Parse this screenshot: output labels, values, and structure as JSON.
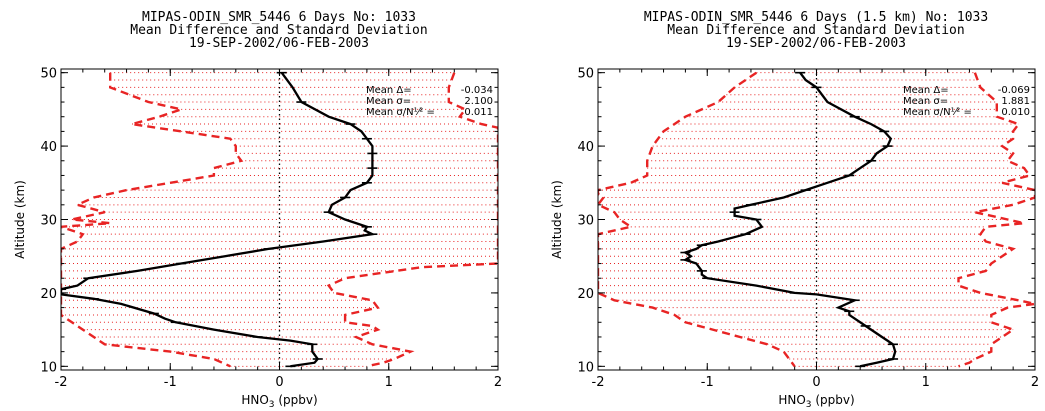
{
  "colors": {
    "profile": "#000000",
    "std_band": "#e82424",
    "zero_line": "#000000"
  },
  "chart_data": [
    {
      "type": "line",
      "title_lines": [
        "MIPAS-ODIN_SMR_5446 6 Days No:   1033",
        "Mean Difference and Standard Deviation",
        "19-SEP-2002/06-FEB-2003"
      ],
      "xlabel": "HNO3 (ppbv)",
      "ylabel": "Altitude (km)",
      "xlim": [
        -2,
        2
      ],
      "ylim": [
        9.5,
        50.5
      ],
      "xticks": [
        "-2",
        "-1",
        "0",
        "1",
        "2"
      ],
      "yticks": [
        "10",
        "20",
        "30",
        "40",
        "50"
      ],
      "grid": "dotted red horizontal fill between std bounds",
      "stats": [
        {
          "label": "Mean Δ=",
          "value": "-0.034"
        },
        {
          "label": "Mean σ=",
          "value": "2.100"
        },
        {
          "label": "Mean σ/N¹⁄² =",
          "value": "0.011"
        }
      ],
      "series": [
        {
          "role": "mean",
          "points": [
            [
              0.02,
              50
            ],
            [
              0.12,
              48
            ],
            [
              0.2,
              46
            ],
            [
              0.45,
              44
            ],
            [
              0.65,
              43
            ],
            [
              0.75,
              42
            ],
            [
              0.8,
              41
            ],
            [
              0.85,
              40
            ],
            [
              0.85,
              39
            ],
            [
              0.85,
              38
            ],
            [
              0.85,
              37
            ],
            [
              0.85,
              36
            ],
            [
              0.8,
              35
            ],
            [
              0.65,
              34
            ],
            [
              0.6,
              33
            ],
            [
              0.48,
              32
            ],
            [
              0.45,
              31
            ],
            [
              0.6,
              30
            ],
            [
              0.8,
              29
            ],
            [
              0.78,
              28.5
            ],
            [
              0.85,
              28
            ],
            [
              0.4,
              27
            ],
            [
              -0.1,
              26
            ],
            [
              -0.5,
              25
            ],
            [
              -0.9,
              24
            ],
            [
              -1.3,
              23
            ],
            [
              -1.75,
              22
            ],
            [
              -1.85,
              21
            ],
            [
              -2.0,
              20.5
            ],
            [
              -2.0,
              19.8
            ],
            [
              -1.7,
              19.2
            ],
            [
              -1.45,
              18.5
            ],
            [
              -1.15,
              17.2
            ],
            [
              -1.05,
              16.5
            ],
            [
              -0.95,
              16
            ],
            [
              -0.6,
              15
            ],
            [
              -0.2,
              14
            ],
            [
              0.1,
              13.5
            ],
            [
              0.3,
              13
            ],
            [
              0.3,
              12
            ],
            [
              0.35,
              11
            ],
            [
              0.32,
              10.5
            ],
            [
              0.1,
              10
            ]
          ]
        },
        {
          "role": "lower",
          "points": [
            [
              -1.55,
              50
            ],
            [
              -1.55,
              48
            ],
            [
              -1.2,
              46
            ],
            [
              -0.9,
              45
            ],
            [
              -1.1,
              44
            ],
            [
              -1.35,
              43
            ],
            [
              -0.9,
              42
            ],
            [
              -0.45,
              41
            ],
            [
              -0.4,
              40
            ],
            [
              -0.4,
              39
            ],
            [
              -0.35,
              38
            ],
            [
              -0.6,
              37
            ],
            [
              -0.6,
              36
            ],
            [
              -1.0,
              35
            ],
            [
              -1.4,
              34
            ],
            [
              -1.7,
              33
            ],
            [
              -1.85,
              32
            ],
            [
              -1.6,
              31
            ],
            [
              -1.9,
              30
            ],
            [
              -1.55,
              29.5
            ],
            [
              -2.0,
              29
            ],
            [
              -1.8,
              28
            ],
            [
              -1.85,
              27
            ],
            [
              -2.0,
              26
            ],
            [
              -2.0,
              25
            ],
            [
              -2.0,
              24
            ],
            [
              -2.0,
              20
            ],
            [
              -2.0,
              19
            ],
            [
              -2.0,
              17
            ],
            [
              -1.9,
              16
            ],
            [
              -1.8,
              15
            ],
            [
              -1.7,
              14
            ],
            [
              -1.6,
              13
            ],
            [
              -1.0,
              12
            ],
            [
              -0.6,
              11
            ],
            [
              -0.45,
              10
            ]
          ]
        },
        {
          "role": "upper",
          "points": [
            [
              1.6,
              50
            ],
            [
              1.55,
              48
            ],
            [
              1.55,
              46
            ],
            [
              1.7,
              45
            ],
            [
              1.65,
              44
            ],
            [
              1.85,
              43
            ],
            [
              2.0,
              42.5
            ],
            [
              2.0,
              40
            ],
            [
              2.0,
              35
            ],
            [
              2.0,
              30
            ],
            [
              2.0,
              25
            ],
            [
              2.0,
              24
            ],
            [
              1.3,
              23.5
            ],
            [
              0.6,
              22
            ],
            [
              0.45,
              21
            ],
            [
              0.5,
              20
            ],
            [
              0.85,
              19
            ],
            [
              0.9,
              18
            ],
            [
              0.6,
              17
            ],
            [
              0.6,
              16
            ],
            [
              0.85,
              15.5
            ],
            [
              0.9,
              15
            ],
            [
              0.7,
              14
            ],
            [
              0.85,
              13
            ],
            [
              1.2,
              12
            ],
            [
              1.05,
              11
            ],
            [
              0.95,
              10.5
            ],
            [
              0.8,
              10
            ]
          ]
        }
      ]
    },
    {
      "type": "line",
      "title_lines": [
        "MIPAS-ODIN_SMR_5446 6 Days (1.5 km) No:   1033",
        "Mean Difference and Standard Deviation",
        "19-SEP-2002/06-FEB-2003"
      ],
      "xlabel": "HNO3 (ppbv)",
      "ylabel": "Altitude (km)",
      "xlim": [
        -2,
        2
      ],
      "ylim": [
        9.5,
        50.5
      ],
      "xticks": [
        "-2",
        "-1",
        "0",
        "1",
        "2"
      ],
      "yticks": [
        "10",
        "20",
        "30",
        "40",
        "50"
      ],
      "grid": "dotted red horizontal fill between std bounds",
      "stats": [
        {
          "label": "Mean Δ=",
          "value": "-0.069"
        },
        {
          "label": "Mean σ=",
          "value": "1.881"
        },
        {
          "label": "Mean σ/N¹⁄² =",
          "value": "0.010"
        }
      ],
      "series": [
        {
          "role": "mean",
          "points": [
            [
              -0.15,
              50
            ],
            [
              -0.1,
              49
            ],
            [
              0.0,
              48
            ],
            [
              0.1,
              46
            ],
            [
              0.35,
              44
            ],
            [
              0.5,
              43
            ],
            [
              0.62,
              42
            ],
            [
              0.68,
              41
            ],
            [
              0.65,
              40
            ],
            [
              0.55,
              39
            ],
            [
              0.5,
              38
            ],
            [
              0.4,
              37
            ],
            [
              0.3,
              36
            ],
            [
              0.1,
              35
            ],
            [
              -0.1,
              34
            ],
            [
              -0.3,
              33
            ],
            [
              -0.6,
              32
            ],
            [
              -0.75,
              31.5
            ],
            [
              -0.75,
              31
            ],
            [
              -0.75,
              30.5
            ],
            [
              -0.55,
              30
            ],
            [
              -0.5,
              29
            ],
            [
              -0.65,
              28
            ],
            [
              -0.9,
              27
            ],
            [
              -1.05,
              26.5
            ],
            [
              -1.1,
              26
            ],
            [
              -1.2,
              25.5
            ],
            [
              -1.15,
              25
            ],
            [
              -1.2,
              24.5
            ],
            [
              -1.1,
              24
            ],
            [
              -1.05,
              23
            ],
            [
              -1.05,
              22.5
            ],
            [
              -1.0,
              22
            ],
            [
              -0.55,
              21
            ],
            [
              -0.2,
              20
            ],
            [
              0.0,
              19.8
            ],
            [
              0.35,
              19
            ],
            [
              0.2,
              18
            ],
            [
              0.3,
              17.5
            ],
            [
              0.3,
              17
            ],
            [
              0.45,
              15.5
            ],
            [
              0.6,
              14
            ],
            [
              0.7,
              13
            ],
            [
              0.72,
              12
            ],
            [
              0.7,
              11
            ],
            [
              0.55,
              10.5
            ],
            [
              0.4,
              10
            ]
          ]
        },
        {
          "role": "lower",
          "points": [
            [
              -0.55,
              50
            ],
            [
              -0.75,
              48
            ],
            [
              -0.9,
              46
            ],
            [
              -1.2,
              44
            ],
            [
              -1.4,
              42
            ],
            [
              -1.5,
              40
            ],
            [
              -1.55,
              38
            ],
            [
              -1.55,
              36
            ],
            [
              -1.7,
              35
            ],
            [
              -2.0,
              34
            ],
            [
              -2.0,
              33.5
            ],
            [
              -1.95,
              33
            ],
            [
              -2.0,
              32
            ],
            [
              -1.85,
              31
            ],
            [
              -1.8,
              30
            ],
            [
              -1.7,
              29
            ],
            [
              -2.0,
              28
            ],
            [
              -2.0,
              25
            ],
            [
              -2.0,
              22
            ],
            [
              -2.0,
              20
            ],
            [
              -1.85,
              19
            ],
            [
              -1.5,
              18
            ],
            [
              -1.3,
              17
            ],
            [
              -1.2,
              16
            ],
            [
              -0.95,
              15
            ],
            [
              -0.7,
              14
            ],
            [
              -0.45,
              13
            ],
            [
              -0.3,
              12
            ],
            [
              -0.25,
              11
            ],
            [
              -0.2,
              10
            ]
          ]
        },
        {
          "role": "upper",
          "points": [
            [
              1.45,
              50
            ],
            [
              1.5,
              48
            ],
            [
              1.65,
              46
            ],
            [
              1.65,
              44
            ],
            [
              1.85,
              43
            ],
            [
              1.8,
              42
            ],
            [
              1.8,
              41
            ],
            [
              1.7,
              40
            ],
            [
              1.8,
              39
            ],
            [
              1.75,
              38
            ],
            [
              1.9,
              37
            ],
            [
              1.95,
              36
            ],
            [
              1.7,
              35
            ],
            [
              2.0,
              34
            ],
            [
              2.0,
              33
            ],
            [
              1.8,
              32
            ],
            [
              1.45,
              31
            ],
            [
              1.75,
              30
            ],
            [
              1.9,
              29.5
            ],
            [
              1.55,
              29
            ],
            [
              1.5,
              28
            ],
            [
              1.55,
              27
            ],
            [
              1.8,
              26
            ],
            [
              1.7,
              25
            ],
            [
              1.6,
              24
            ],
            [
              1.55,
              23
            ],
            [
              1.3,
              22
            ],
            [
              1.3,
              21
            ],
            [
              1.5,
              20
            ],
            [
              1.85,
              19
            ],
            [
              2.0,
              18.5
            ],
            [
              1.75,
              18
            ],
            [
              1.6,
              17
            ],
            [
              1.6,
              16
            ],
            [
              1.8,
              15
            ],
            [
              1.7,
              14
            ],
            [
              1.6,
              13
            ],
            [
              1.6,
              12
            ],
            [
              1.45,
              11
            ],
            [
              1.4,
              10.5
            ],
            [
              1.3,
              10
            ]
          ]
        }
      ]
    }
  ]
}
